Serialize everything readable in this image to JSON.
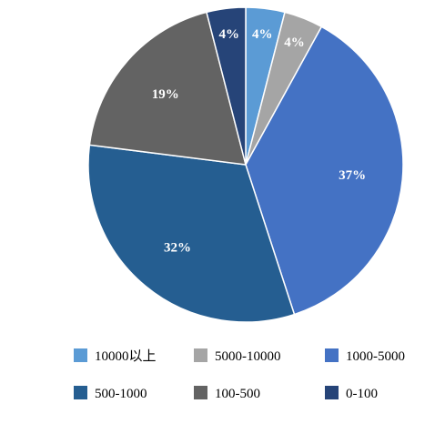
{
  "chart_data": {
    "type": "pie",
    "title": "",
    "start": "12 o'clock",
    "direction": "clockwise",
    "legend_position": "bottom",
    "series": [
      {
        "name": "10000以上",
        "value": 4,
        "label": "4%",
        "color": "#5B9BD5",
        "label_color": "#ffffff"
      },
      {
        "name": "5000-10000",
        "value": 4,
        "label": "4%",
        "color": "#A5A5A5",
        "label_color": "#ffffff"
      },
      {
        "name": "1000-5000",
        "value": 37,
        "label": "37%",
        "color": "#4472C4",
        "label_color": "#ffffff"
      },
      {
        "name": "500-1000",
        "value": 32,
        "label": "32%",
        "color": "#255E91",
        "label_color": "#ffffff"
      },
      {
        "name": "100-500",
        "value": 19,
        "label": "19%",
        "color": "#636363",
        "label_color": "#ffffff"
      },
      {
        "name": "0-100",
        "value": 4,
        "label": "4%",
        "color": "#264478",
        "label_color": "#ffffff"
      }
    ]
  }
}
